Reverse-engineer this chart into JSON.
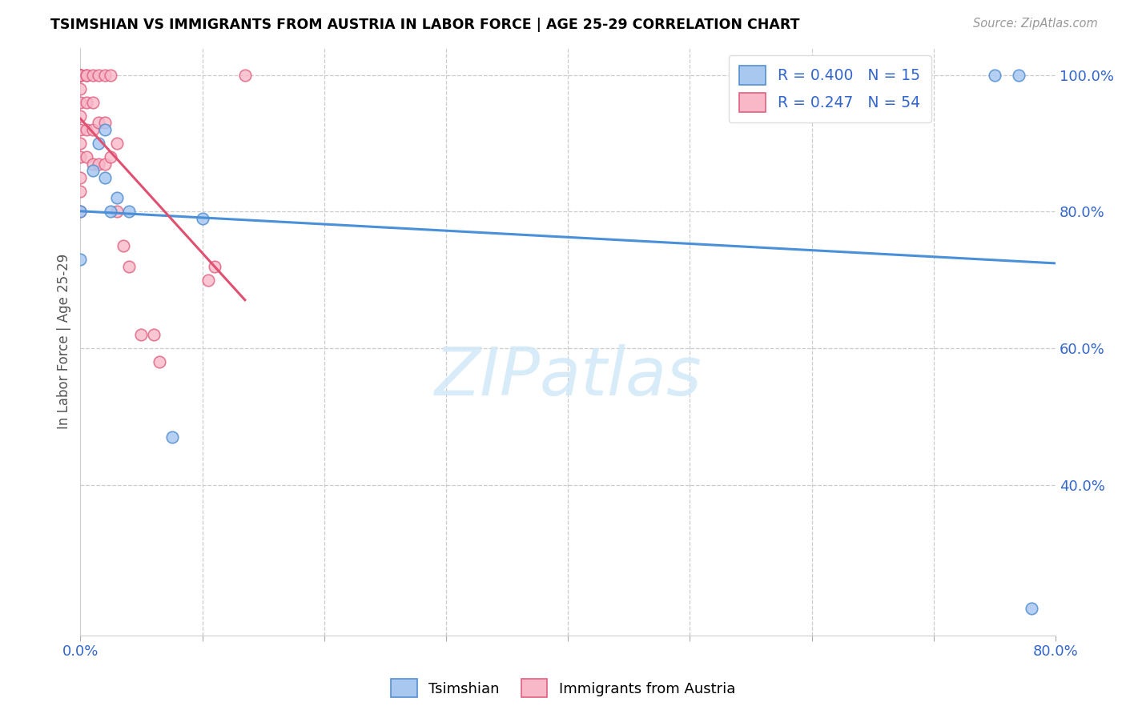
{
  "title": "TSIMSHIAN VS IMMIGRANTS FROM AUSTRIA IN LABOR FORCE | AGE 25-29 CORRELATION CHART",
  "source": "Source: ZipAtlas.com",
  "ylabel": "In Labor Force | Age 25-29",
  "color_tsimshian_fill": "#a8c8f0",
  "color_tsimshian_edge": "#5590d0",
  "color_austria_fill": "#f8b8c8",
  "color_austria_edge": "#e06080",
  "color_line_tsimshian": "#4a90d9",
  "color_line_austria": "#e05070",
  "xmin": 0.0,
  "xmax": 0.8,
  "ymin": 0.18,
  "ymax": 1.04,
  "tsimshian_x": [
    0.0,
    0.0,
    0.01,
    0.015,
    0.02,
    0.02,
    0.025,
    0.03,
    0.04,
    0.075,
    0.1,
    0.75,
    0.77,
    0.78
  ],
  "tsimshian_y": [
    0.73,
    0.8,
    0.86,
    0.9,
    0.85,
    0.92,
    0.8,
    0.82,
    0.8,
    0.47,
    0.79,
    1.0,
    1.0,
    0.22
  ],
  "austria_x": [
    0.0,
    0.0,
    0.0,
    0.0,
    0.0,
    0.0,
    0.0,
    0.0,
    0.0,
    0.0,
    0.0,
    0.0,
    0.0,
    0.0,
    0.0,
    0.0,
    0.0,
    0.005,
    0.005,
    0.005,
    0.005,
    0.005,
    0.01,
    0.01,
    0.01,
    0.01,
    0.015,
    0.015,
    0.015,
    0.02,
    0.02,
    0.02,
    0.025,
    0.025,
    0.03,
    0.03,
    0.035,
    0.04,
    0.05,
    0.06,
    0.065,
    0.105,
    0.11,
    0.135
  ],
  "austria_y": [
    0.8,
    0.83,
    0.85,
    0.88,
    0.9,
    0.92,
    0.94,
    0.96,
    0.98,
    1.0,
    1.0,
    1.0,
    1.0,
    1.0,
    1.0,
    1.0,
    1.0,
    0.88,
    0.92,
    0.96,
    1.0,
    1.0,
    0.87,
    0.92,
    0.96,
    1.0,
    0.87,
    0.93,
    1.0,
    0.87,
    0.93,
    1.0,
    0.88,
    1.0,
    0.8,
    0.9,
    0.75,
    0.72,
    0.62,
    0.62,
    0.58,
    0.7,
    0.72,
    1.0
  ]
}
